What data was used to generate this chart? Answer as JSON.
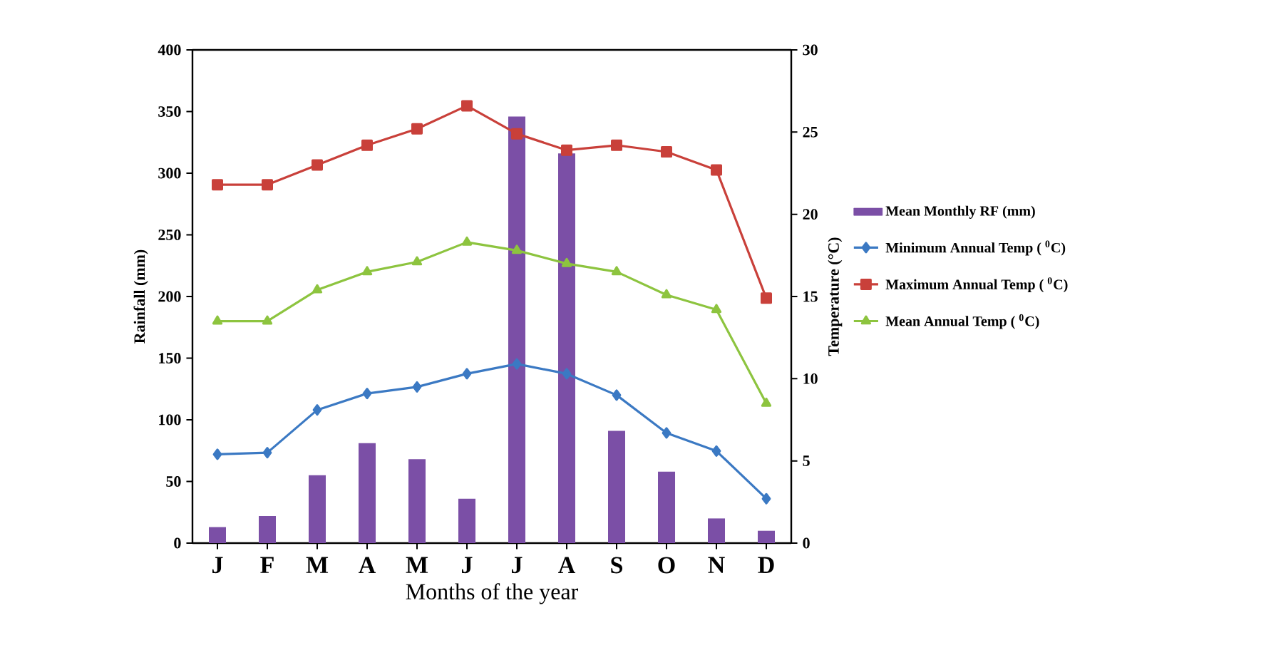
{
  "chart_data": {
    "type": "line",
    "xlabel": "Months of the year",
    "ylabel": "Rainfall (mm)",
    "y2label": "Temperature  (°C)",
    "categories": [
      "J",
      "F",
      "M",
      "A",
      "M",
      "J",
      "J",
      "A",
      "S",
      "O",
      "N",
      "D"
    ],
    "ylim": [
      0,
      400
    ],
    "yticks": [
      0,
      50,
      100,
      150,
      200,
      250,
      300,
      350,
      400
    ],
    "y2lim": [
      0,
      30
    ],
    "y2ticks": [
      0,
      5,
      10,
      15,
      20,
      25,
      30
    ],
    "legend": "right",
    "series": [
      {
        "name": "Mean Monthly RF (mm)",
        "type": "bar",
        "color": "#7b4fa6",
        "values": [
          13,
          22,
          55,
          81,
          68,
          36,
          346,
          316,
          91,
          58,
          20,
          10
        ]
      },
      {
        "name": "Minimum Annual Temp ( $^{0}$C)",
        "axis": "y2",
        "marker": "diamond",
        "color": "#3b79c3",
        "values": [
          5.4,
          5.5,
          8.1,
          9.1,
          9.5,
          10.3,
          10.9,
          10.3,
          9.0,
          6.7,
          5.6,
          2.7
        ]
      },
      {
        "name": "Maximum Annual Temp ( $^{0}$C)",
        "axis": "y2",
        "marker": "square",
        "color": "#c9403a",
        "values": [
          21.8,
          21.8,
          23.0,
          24.2,
          25.2,
          26.6,
          24.9,
          23.9,
          24.2,
          23.8,
          22.7,
          14.9
        ]
      },
      {
        "name": "Mean Annual Temp ( $^{0}$C)",
        "axis": "y2",
        "marker": "triangle",
        "color": "#8dc43f",
        "values": [
          13.5,
          13.5,
          15.4,
          16.5,
          17.1,
          18.3,
          17.8,
          17.0,
          16.5,
          15.1,
          14.2,
          8.5
        ]
      }
    ]
  }
}
